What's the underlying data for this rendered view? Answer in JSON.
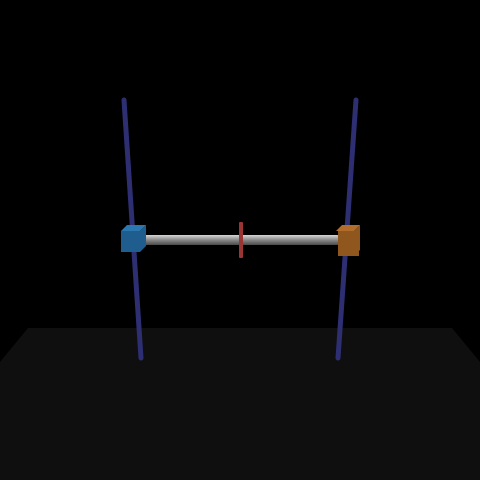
{
  "scene": {
    "colors": {
      "background": "#000000",
      "floor": "#0f0f0f",
      "left_rail": "#2d2f72",
      "right_rail": "#2d2f72",
      "left_slider": "#1f5d8f",
      "left_slider_top": "#2b77b0",
      "right_slider": "#8f561d",
      "right_slider_top": "#b26d2a",
      "bar_light": "#d7d7d7",
      "bar_mid": "#8f8f8f",
      "bar_dark": "#4a4a4a",
      "center_marker": "#9b3434"
    },
    "objects": [
      "floor",
      "left-vertical-rail",
      "right-vertical-rail",
      "left-slider-block",
      "right-slider-block",
      "horizontal-bar",
      "center-marker"
    ]
  }
}
